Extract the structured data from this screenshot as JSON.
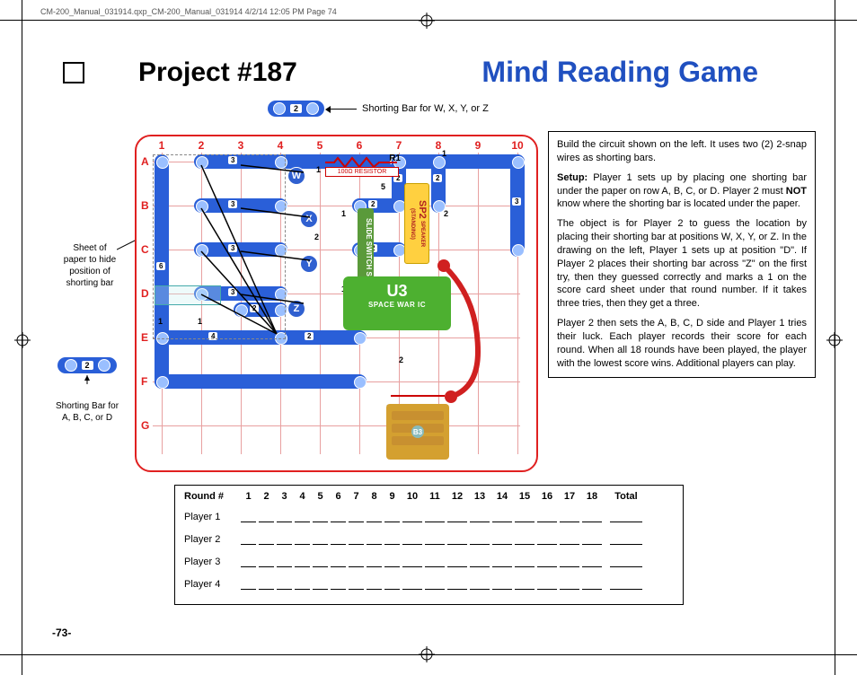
{
  "doc_header": "CM-200_Manual_031914.qxp_CM-200_Manual_031914  4/2/14  12:05 PM  Page 74",
  "project_title": "Project #187",
  "game_title": "Mind Reading Game",
  "shorting_top_label": "2",
  "shorting_top_text": "Shorting Bar for W, X, Y, or Z",
  "shorting_left_label": "2",
  "shorting_left_text": "Shorting Bar for\nA, B, C, or D",
  "paper_note": "Sheet of\npaper to hide\nposition of\nshorting bar",
  "board": {
    "columns": [
      "1",
      "2",
      "3",
      "4",
      "5",
      "6",
      "7",
      "8",
      "9",
      "10"
    ],
    "rows": [
      "A",
      "B",
      "C",
      "D",
      "E",
      "F",
      "G"
    ],
    "col_spacing": 44,
    "row_spacing": 49,
    "col_start": 28,
    "row_start": 28,
    "border_color": "#e02020",
    "grid_color": "#e8a0a0",
    "wire_color": "#2a5fd8",
    "snap_color": "#9abfff"
  },
  "components": {
    "resistor": {
      "label_top": "R1",
      "label_bottom": "100Ω  RESISTOR"
    },
    "u3": {
      "label": "U3",
      "sub": "SPACE WAR IC",
      "bg": "#4db030"
    },
    "s1": {
      "label": "SLIDE SWITCH S1",
      "bg": "#5a9a3a"
    },
    "sp2": {
      "label": "SP2",
      "sub": "SPEAKER\n(STANDING)",
      "bg": "#ffd040"
    },
    "marks": [
      "W",
      "X",
      "Y",
      "Z"
    ],
    "battery_bg": "#d4a030"
  },
  "instructions": {
    "p1": "Build the circuit shown on the left. It uses two (2) 2-snap wires as shorting bars.",
    "p2_lead": "Setup:",
    "p2": " Player 1 sets up by placing one shorting bar under the paper on row A, B, C, or D. Player 2 must ",
    "p2_bold": "NOT",
    "p2_end": " know where the shorting bar is located under the paper.",
    "p3": "The object is for Player 2 to guess the location by placing their shorting bar at positions W, X, Y, or Z. In the drawing on the left, Player 1 sets up at position \"D\". If Player 2 places their shorting bar across \"Z\" on the first try, then they guessed correctly and marks a 1 on the score card sheet under that round number. If it takes three tries, then they get a three.",
    "p4": "Player 2 then sets the A, B, C, D side and Player 1 tries their luck. Each player records their score for each round. When all 18 rounds have been played, the player with the lowest score wins. Additional players can play."
  },
  "score": {
    "round_label": "Round #",
    "rounds": [
      "1",
      "2",
      "3",
      "4",
      "5",
      "6",
      "7",
      "8",
      "9",
      "10",
      "11",
      "12",
      "13",
      "14",
      "15",
      "16",
      "17",
      "18"
    ],
    "total_label": "Total",
    "players": [
      "Player 1",
      "Player 2",
      "Player 3",
      "Player 4"
    ]
  },
  "page_number": "-73-"
}
